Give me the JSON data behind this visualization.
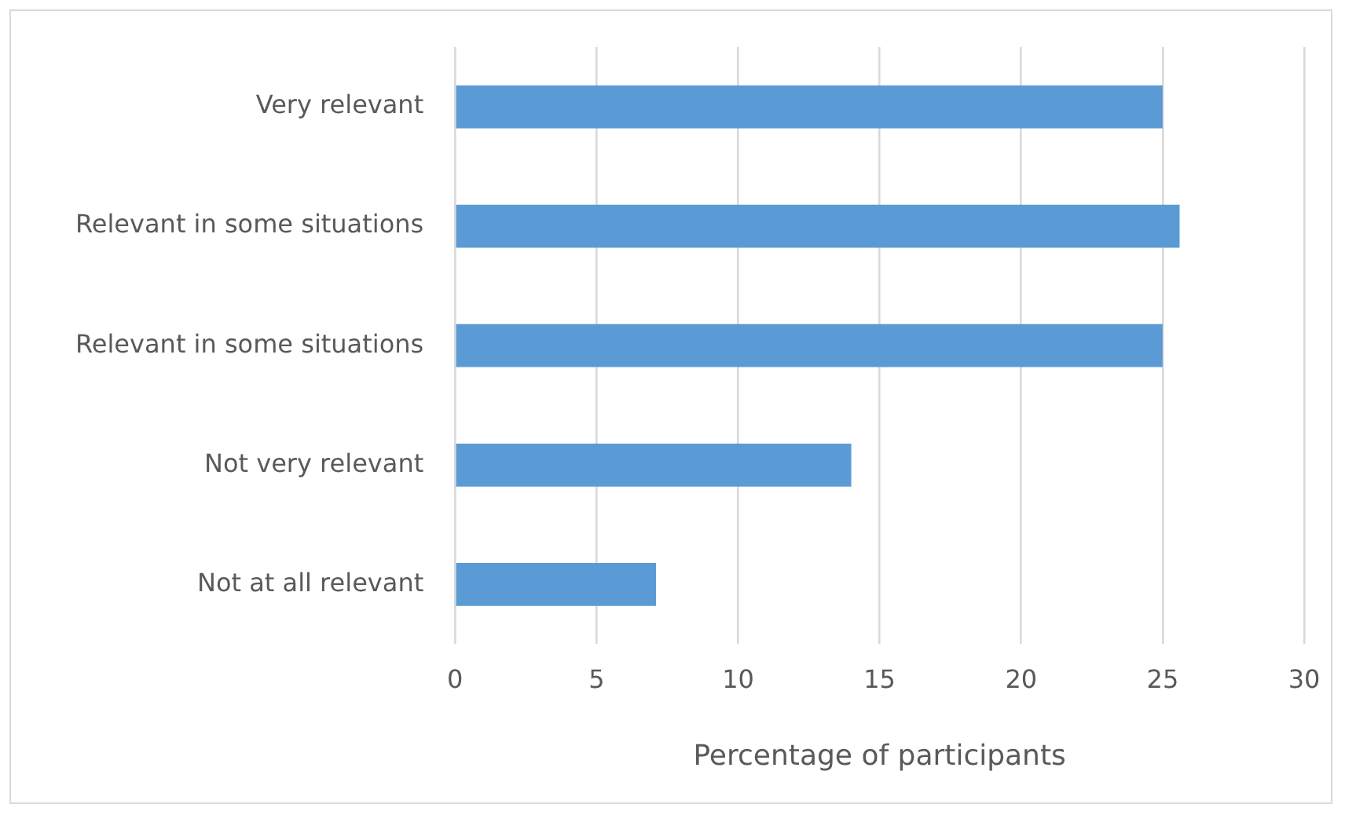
{
  "chart_data": {
    "type": "bar",
    "orientation": "horizontal",
    "xlabel": "Percentage of participants",
    "categories": [
      "Very relevant",
      "Relevant in some situations",
      "Relevant in some situations",
      "Not very relevant",
      "Not at all relevant"
    ],
    "values": [
      25,
      25.6,
      25,
      14,
      7.1
    ],
    "color": "#5b9bd5",
    "xlim": [
      0,
      30
    ],
    "xticks": [
      0,
      5,
      10,
      15,
      20,
      25,
      30
    ],
    "grid": "x",
    "legend": false
  }
}
